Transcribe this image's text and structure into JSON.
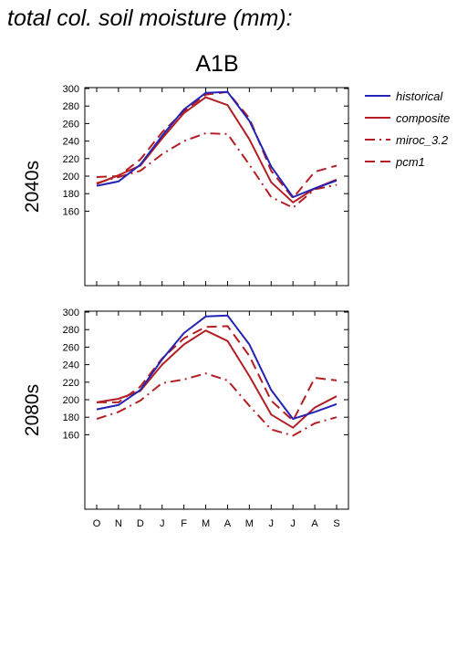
{
  "title": "total col. soil moisture (mm):",
  "chart_data": {
    "type": "line",
    "scenario": "A1B",
    "months": [
      "O",
      "N",
      "D",
      "J",
      "F",
      "M",
      "A",
      "M",
      "J",
      "J",
      "A",
      "S"
    ],
    "legend": [
      {
        "name": "historical",
        "color": "#2323b5",
        "dash": "solid"
      },
      {
        "name": "composite",
        "color": "#b31e24",
        "dash": "solid"
      },
      {
        "name": "miroc_3.2",
        "color": "#b31e24",
        "dash": "dashdot"
      },
      {
        "name": "pcm1",
        "color": "#b31e24",
        "dash": "dash"
      }
    ],
    "panels": [
      {
        "label": "2040s",
        "ylim": [
          170,
          300
        ],
        "yticks": [
          "300",
          "280",
          "260",
          "240",
          "220",
          "200",
          "180",
          "160"
        ],
        "series": [
          {
            "name": "historical",
            "values": [
              189,
              194,
              213,
              246,
              276,
              295,
              296,
              263,
              211,
              176,
              186,
              195
            ]
          },
          {
            "name": "composite",
            "values": [
              191,
              201,
              212,
              243,
              272,
              290,
              281,
              242,
              193,
              170,
              186,
              196
            ]
          },
          {
            "name": "miroc_3.2",
            "values": [
              192,
              199,
              206,
              225,
              240,
              249,
              248,
              213,
              176,
              164,
              185,
              190
            ]
          },
          {
            "name": "pcm1",
            "values": [
              199,
              200,
              219,
              250,
              274,
              293,
              296,
              266,
              206,
              175,
              205,
              212
            ]
          }
        ]
      },
      {
        "label": "2080s",
        "ylim": [
          170,
          300
        ],
        "yticks": [
          "300",
          "280",
          "260",
          "240",
          "220",
          "200",
          "180",
          "160"
        ],
        "series": [
          {
            "name": "historical",
            "values": [
              189,
              194,
              211,
              246,
              276,
              295,
              296,
              263,
              211,
              178,
              186,
              195
            ]
          },
          {
            "name": "composite",
            "values": [
              197,
              201,
              210,
              240,
              263,
              279,
              267,
              227,
              183,
              168,
              191,
              204
            ]
          },
          {
            "name": "miroc_3.2",
            "values": [
              178,
              186,
              199,
              219,
              223,
              230,
              222,
              193,
              166,
              159,
              173,
              180
            ]
          },
          {
            "name": "pcm1",
            "values": [
              197,
              197,
              215,
              247,
              270,
              283,
              284,
              250,
              199,
              176,
              225,
              222
            ]
          }
        ]
      }
    ]
  }
}
